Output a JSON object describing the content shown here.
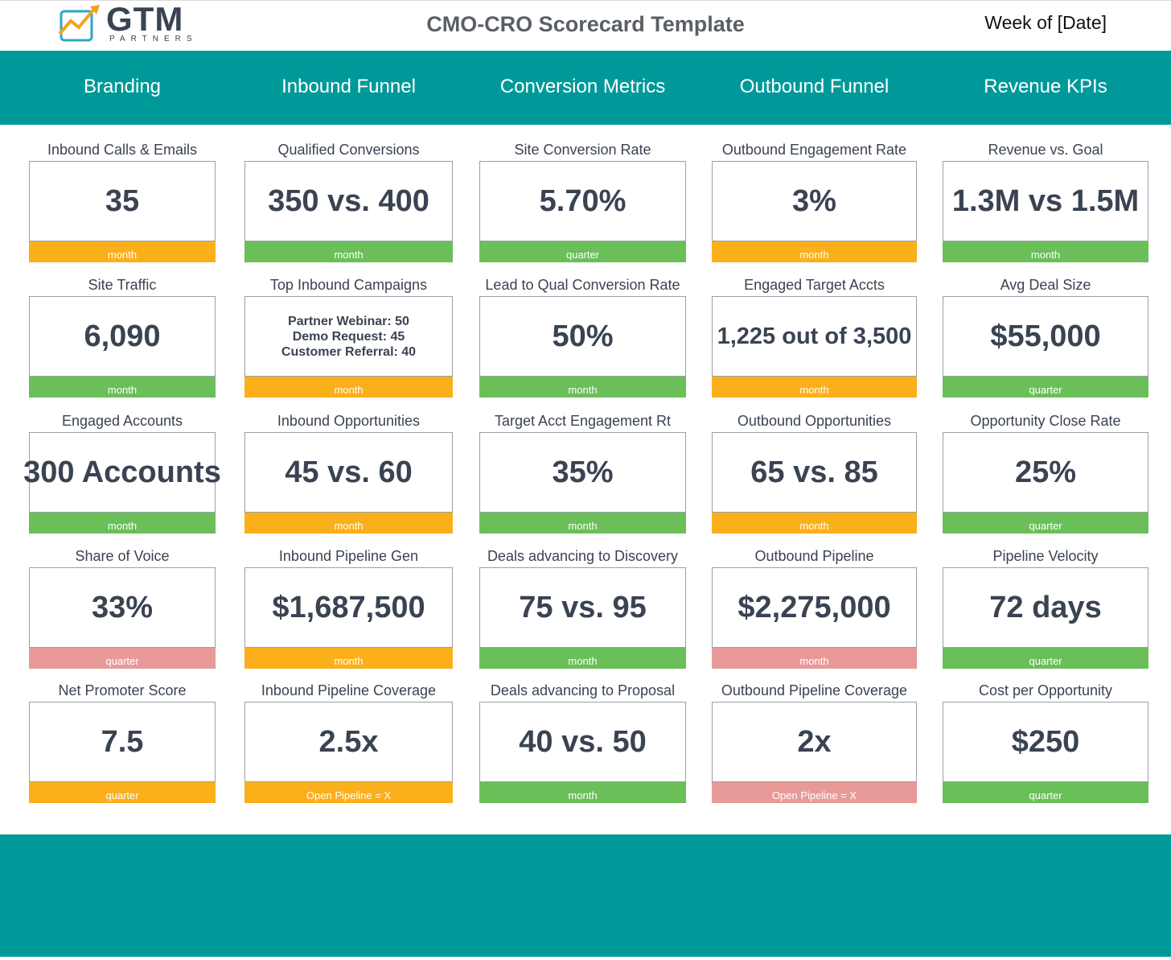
{
  "header": {
    "logo_text": "GTM",
    "logo_sub": "PARTNERS",
    "title": "CMO-CRO Scorecard Template",
    "week": "Week of [Date]"
  },
  "categories": [
    "Branding",
    "Inbound Funnel",
    "Conversion Metrics",
    "Outbound Funnel",
    "Revenue KPIs"
  ],
  "colors": {
    "teal": "#009999",
    "green": "#6abf59",
    "orange": "#fbaf1b",
    "red": "#e89a99"
  },
  "columns": [
    {
      "tiles": [
        {
          "label": "Inbound Calls & Emails",
          "value": "35",
          "period": "month",
          "status": "orange"
        },
        {
          "label": "Site Traffic",
          "value": "6,090",
          "period": "month",
          "status": "green"
        },
        {
          "label": "Engaged Accounts",
          "value": "300 Accounts",
          "period": "month",
          "status": "green"
        },
        {
          "label": "Share of Voice",
          "value": "33%",
          "period": "quarter",
          "status": "red"
        },
        {
          "label": "Net Promoter Score",
          "value": "7.5",
          "period": "quarter",
          "status": "orange"
        }
      ]
    },
    {
      "tiles": [
        {
          "label": "Qualified Conversions",
          "value": "350 vs. 400",
          "period": "month",
          "status": "green"
        },
        {
          "label": "Top Inbound Campaigns",
          "value": "Partner Webinar: 50\nDemo Request: 45\nCustomer Referral: 40",
          "period": "month",
          "status": "orange"
        },
        {
          "label": "Inbound Opportunities",
          "value": "45 vs. 60",
          "period": "month",
          "status": "orange"
        },
        {
          "label": "Inbound Pipeline Gen",
          "value": "$1,687,500",
          "period": "month",
          "status": "orange"
        },
        {
          "label": "Inbound Pipeline Coverage",
          "value": "2.5x",
          "period": "Open Pipeline = X",
          "status": "orange"
        }
      ]
    },
    {
      "tiles": [
        {
          "label": "Site Conversion Rate",
          "value": "5.70%",
          "period": "quarter",
          "status": "green"
        },
        {
          "label": "Lead to Qual Conversion Rate",
          "value": "50%",
          "period": "month",
          "status": "green"
        },
        {
          "label": "Target Acct Engagement Rt",
          "value": "35%",
          "period": "month",
          "status": "green"
        },
        {
          "label": "Deals advancing to Discovery",
          "value": "75 vs. 95",
          "period": "month",
          "status": "green"
        },
        {
          "label": "Deals advancing to Proposal",
          "value": "40 vs. 50",
          "period": "month",
          "status": "green"
        }
      ]
    },
    {
      "tiles": [
        {
          "label": "Outbound Engagement Rate",
          "value": "3%",
          "period": "month",
          "status": "orange"
        },
        {
          "label": "Engaged Target Accts",
          "value": "1,225 out of 3,500",
          "period": "month",
          "status": "orange"
        },
        {
          "label": "Outbound Opportunities",
          "value": "65 vs. 85",
          "period": "month",
          "status": "orange"
        },
        {
          "label": "Outbound Pipeline",
          "value": "$2,275,000",
          "period": "month",
          "status": "red"
        },
        {
          "label": "Outbound Pipeline Coverage",
          "value": "2x",
          "period": "Open Pipeline = X",
          "status": "red"
        }
      ]
    },
    {
      "tiles": [
        {
          "label": "Revenue vs. Goal",
          "value": "1.3M vs 1.5M",
          "period": "month",
          "status": "green"
        },
        {
          "label": "Avg Deal Size",
          "value": "$55,000",
          "period": "quarter",
          "status": "green"
        },
        {
          "label": "Opportunity Close Rate",
          "value": "25%",
          "period": "quarter",
          "status": "green"
        },
        {
          "label": "Pipeline Velocity",
          "value": "72 days",
          "period": "quarter",
          "status": "green"
        },
        {
          "label": "Cost per Opportunity",
          "value": "$250",
          "period": "quarter",
          "status": "green"
        }
      ]
    }
  ]
}
